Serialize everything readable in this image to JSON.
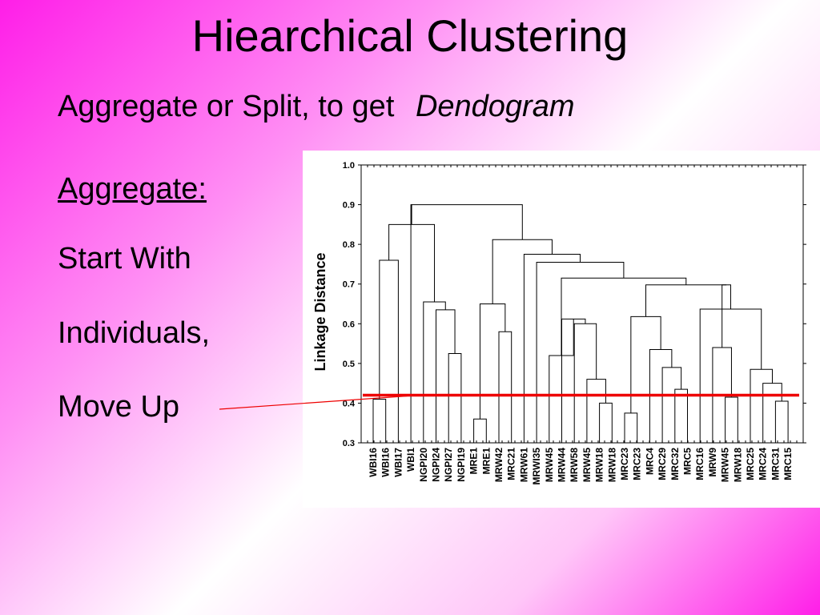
{
  "slide": {
    "title": "Hiearchical Clustering",
    "subtitle_plain": "Aggregate or Split, to get",
    "subtitle_emphasis": "Dendogram",
    "bullets": [
      "Aggregate:",
      "Start With",
      "Individuals,",
      "Move Up"
    ]
  },
  "colors": {
    "cut_line": "#ee0000",
    "dendrogram_line": "#000000",
    "background_accent": "#ff1ee8"
  },
  "chart_data": {
    "type": "dendrogram",
    "ylabel": "Linkage Distance",
    "ylim": [
      0.3,
      1.0
    ],
    "yticks": [
      "0.3",
      "0.4",
      "0.5",
      "0.6",
      "0.7",
      "0.8",
      "0.9",
      "1.0"
    ],
    "grid": false,
    "leaves": [
      "WBI16",
      "WBI16",
      "WBI17",
      "WBI1",
      "NGPI20",
      "NGPI24",
      "NGPI27",
      "NGPI19",
      "MRE1",
      "MRE1",
      "MRW42",
      "MRC21",
      "MRW61",
      "MRWI35",
      "MRW45",
      "MRW44",
      "MRW58",
      "MRW45",
      "MRW18",
      "MRW18",
      "MRC23",
      "MRC23",
      "MRC4",
      "MRC29",
      "MRC32",
      "MRC5",
      "MRC16",
      "MRW9",
      "MRW45",
      "MRW18",
      "MRC25",
      "MRC24",
      "MRC31",
      "MRC15"
    ],
    "merges": [
      {
        "a": "L0",
        "b": "L1",
        "height": 0.41
      },
      {
        "a": "M0",
        "b": "L2",
        "height": 0.76
      },
      {
        "a": "L6",
        "b": "L7",
        "height": 0.525
      },
      {
        "a": "L5",
        "b": "M2",
        "height": 0.635
      },
      {
        "a": "L4",
        "b": "M3",
        "height": 0.655
      },
      {
        "a": "M1",
        "b": "M4",
        "height": 0.85
      },
      {
        "a": "L8",
        "b": "L9",
        "height": 0.36
      },
      {
        "a": "L10",
        "b": "L11",
        "height": 0.58
      },
      {
        "a": "M6",
        "b": "M7",
        "height": 0.65
      },
      {
        "a": "L3",
        "b": "M5",
        "height": 0.9
      },
      {
        "a": "L18",
        "b": "L19",
        "height": 0.4
      },
      {
        "a": "L17",
        "b": "M10",
        "height": 0.46
      },
      {
        "a": "L16",
        "b": "M11",
        "height": 0.6
      },
      {
        "a": "L15",
        "b": "M12",
        "height": 0.612
      },
      {
        "a": "L14",
        "b": "M13",
        "height": 0.52
      },
      {
        "a": "L20",
        "b": "L21",
        "height": 0.375
      },
      {
        "a": "L24",
        "b": "L25",
        "height": 0.435
      },
      {
        "a": "L23",
        "b": "M16",
        "height": 0.49
      },
      {
        "a": "L22",
        "b": "M17",
        "height": 0.535
      },
      {
        "a": "M15",
        "b": "M18",
        "height": 0.618
      },
      {
        "a": "L28",
        "b": "L29",
        "height": 0.415
      },
      {
        "a": "L27",
        "b": "M20",
        "height": 0.54
      },
      {
        "a": "L32",
        "b": "L33",
        "height": 0.405
      },
      {
        "a": "L31",
        "b": "M22",
        "height": 0.45
      },
      {
        "a": "L30",
        "b": "M23",
        "height": 0.485
      },
      {
        "a": "M24",
        "b": "L26",
        "height": 0.637
      },
      {
        "a": "M21",
        "b": "M25",
        "height": 0.698
      },
      {
        "a": "M19",
        "b": "M26",
        "height": 0.698
      },
      {
        "a": "M14",
        "b": "M27",
        "height": 0.715
      },
      {
        "a": "L13",
        "b": "M28",
        "height": 0.755
      },
      {
        "a": "L12",
        "b": "M29",
        "height": 0.775
      },
      {
        "a": "M8",
        "b": "M30",
        "height": 0.812
      },
      {
        "a": "M9",
        "b": "M31",
        "height": 0.9
      }
    ],
    "cut_height": 0.42
  }
}
